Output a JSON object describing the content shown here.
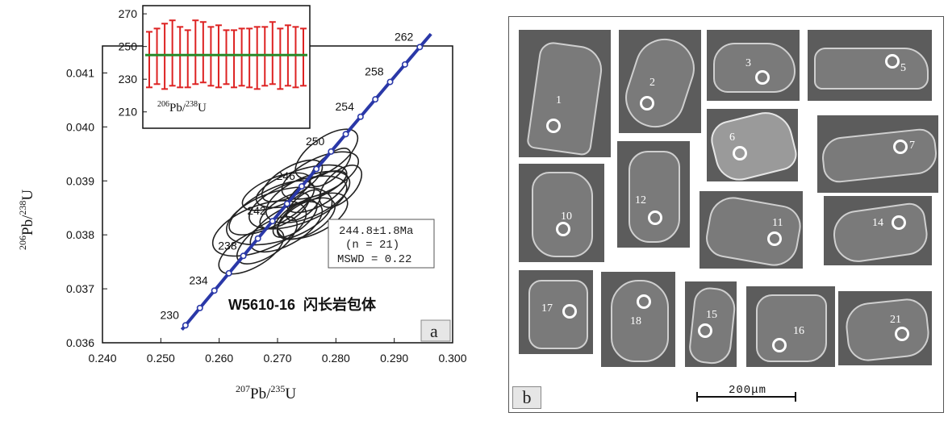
{
  "chart_data": [
    {
      "type": "scatter",
      "subtype": "concordia",
      "panel_label": "a",
      "xlabel": {
        "sup1": "207",
        "base1": "Pb/",
        "sup2": "235",
        "base2": "U"
      },
      "ylabel": {
        "sup1": "206",
        "base1": "Pb/",
        "sup2": "238",
        "base2": "U"
      },
      "xlim": [
        0.24,
        0.3
      ],
      "ylim": [
        0.036,
        0.0415
      ],
      "x_ticks": [
        "0.240",
        "0.250",
        "0.260",
        "0.270",
        "0.280",
        "0.290",
        "0.300"
      ],
      "y_ticks": [
        "0.036",
        "0.037",
        "0.038",
        "0.039",
        "0.040",
        "0.041"
      ],
      "concordia_age_labels": [
        "230",
        "234",
        "238",
        "242",
        "246",
        "250",
        "254",
        "258",
        "262"
      ],
      "concordia_color": "#2a38a8",
      "ellipse_color": "#222222",
      "ellipses": [
        {
          "x": 0.2669,
          "y": 0.03812,
          "rx": 0.0085,
          "ry": 0.0038,
          "angle": -22
        },
        {
          "x": 0.2703,
          "y": 0.03835,
          "rx": 0.0094,
          "ry": 0.0042,
          "angle": -18
        },
        {
          "x": 0.2735,
          "y": 0.0386,
          "rx": 0.0088,
          "ry": 0.0036,
          "angle": -20
        },
        {
          "x": 0.269,
          "y": 0.0385,
          "rx": 0.0081,
          "ry": 0.003,
          "angle": -28
        },
        {
          "x": 0.2752,
          "y": 0.0387,
          "rx": 0.0077,
          "ry": 0.0034,
          "angle": -24
        },
        {
          "x": 0.2715,
          "y": 0.03815,
          "rx": 0.0069,
          "ry": 0.003,
          "angle": -30
        },
        {
          "x": 0.2741,
          "y": 0.0389,
          "rx": 0.0081,
          "ry": 0.0028,
          "angle": -18
        },
        {
          "x": 0.2773,
          "y": 0.0391,
          "rx": 0.0071,
          "ry": 0.003,
          "angle": -25
        },
        {
          "x": 0.2784,
          "y": 0.0395,
          "rx": 0.0062,
          "ry": 0.0028,
          "angle": -35
        },
        {
          "x": 0.2682,
          "y": 0.0379,
          "rx": 0.006,
          "ry": 0.0026,
          "angle": -35
        },
        {
          "x": 0.2725,
          "y": 0.039,
          "rx": 0.0058,
          "ry": 0.0024,
          "angle": -30
        },
        {
          "x": 0.276,
          "y": 0.03835,
          "rx": 0.0065,
          "ry": 0.003,
          "angle": -26
        },
        {
          "x": 0.2698,
          "y": 0.0388,
          "rx": 0.0062,
          "ry": 0.0024,
          "angle": -22
        },
        {
          "x": 0.273,
          "y": 0.0383,
          "rx": 0.0045,
          "ry": 0.002,
          "angle": -38
        },
        {
          "x": 0.2749,
          "y": 0.0383,
          "rx": 0.0055,
          "ry": 0.0026,
          "angle": -30
        },
        {
          "x": 0.2768,
          "y": 0.0388,
          "rx": 0.0058,
          "ry": 0.0024,
          "angle": -30
        },
        {
          "x": 0.2712,
          "y": 0.03845,
          "rx": 0.0048,
          "ry": 0.002,
          "angle": -32
        },
        {
          "x": 0.279,
          "y": 0.03925,
          "rx": 0.0044,
          "ry": 0.0019,
          "angle": -42
        },
        {
          "x": 0.2808,
          "y": 0.0389,
          "rx": 0.0045,
          "ry": 0.0024,
          "angle": -45
        },
        {
          "x": 0.2655,
          "y": 0.0377,
          "rx": 0.0062,
          "ry": 0.0028,
          "angle": -30
        },
        {
          "x": 0.2745,
          "y": 0.03855,
          "rx": 0.0036,
          "ry": 0.0016,
          "angle": -40
        }
      ],
      "result_box": {
        "age": "244.8±1.8Ma",
        "n": "(n = 21)",
        "mswd": "MSWD = 0.22"
      },
      "sample_label": "W5610-16  闪长岩包体",
      "inset": {
        "type": "bar",
        "ylim": [
          200,
          275
        ],
        "y_ticks": [
          "210",
          "230",
          "250",
          "270"
        ],
        "label": {
          "sup1": "206",
          "base1": "Pb/",
          "sup2": "238",
          "base2": "U"
        },
        "mean": 244.8,
        "mean_color": "#2a8a2a",
        "bar_color": "#dd2222",
        "intervals": [
          [
            225,
            259
          ],
          [
            227,
            261
          ],
          [
            224,
            264
          ],
          [
            226,
            266
          ],
          [
            225,
            262
          ],
          [
            225,
            260
          ],
          [
            227,
            266
          ],
          [
            228,
            265
          ],
          [
            226,
            262
          ],
          [
            225,
            263
          ],
          [
            227,
            260
          ],
          [
            225,
            260
          ],
          [
            226,
            261
          ],
          [
            225,
            261
          ],
          [
            224,
            262
          ],
          [
            226,
            262
          ],
          [
            227,
            265
          ],
          [
            224,
            261
          ],
          [
            226,
            263
          ],
          [
            225,
            262
          ],
          [
            226,
            261
          ]
        ]
      }
    }
  ],
  "panel_b": {
    "panel_label": "b",
    "scale_bar_label": "200μm",
    "grains": [
      {
        "id": "1"
      },
      {
        "id": "2"
      },
      {
        "id": "3"
      },
      {
        "id": "5"
      },
      {
        "id": "6"
      },
      {
        "id": "7"
      },
      {
        "id": "10"
      },
      {
        "id": "12"
      },
      {
        "id": "11"
      },
      {
        "id": "14"
      },
      {
        "id": "17"
      },
      {
        "id": "18"
      },
      {
        "id": "15"
      },
      {
        "id": "16"
      },
      {
        "id": "21"
      }
    ]
  }
}
